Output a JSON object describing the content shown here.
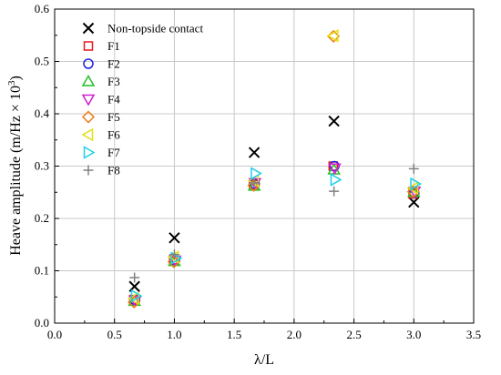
{
  "chart_data": {
    "type": "scatter",
    "xlabel": "λ/L",
    "ylabel_main": "Heave amplitude (m/Hz × 10",
    "ylabel_sup": "3",
    "ylabel_tail": ")",
    "xlim": [
      0.0,
      3.5
    ],
    "ylim": [
      0.0,
      0.6
    ],
    "xticks": [
      "0.0",
      "0.5",
      "1.0",
      "1.5",
      "2.0",
      "2.5",
      "3.0",
      "3.5"
    ],
    "yticks": [
      "0.0",
      "0.1",
      "0.2",
      "0.3",
      "0.4",
      "0.5",
      "0.6"
    ],
    "grid": true,
    "legend_position": "top-left",
    "x": [
      0.667,
      1.0,
      1.667,
      2.333,
      3.0
    ],
    "series": [
      {
        "name": "Non-topside contact",
        "marker": "x",
        "color": "#000000",
        "dx": 0.0,
        "values": [
          0.07,
          0.163,
          0.326,
          0.386,
          0.231
        ]
      },
      {
        "name": "F1",
        "marker": "square",
        "color": "#e8191f",
        "dx": -0.006,
        "values": [
          0.045,
          0.121,
          0.265,
          0.3,
          0.247
        ]
      },
      {
        "name": "F2",
        "marker": "circle",
        "color": "#1f1fe0",
        "dx": 0.004,
        "values": [
          0.044,
          0.12,
          0.266,
          0.3,
          0.249
        ]
      },
      {
        "name": "F3",
        "marker": "triangle-up",
        "color": "#22c022",
        "dx": 0.0,
        "values": [
          0.042,
          0.118,
          0.262,
          0.293,
          0.25
        ]
      },
      {
        "name": "F4",
        "marker": "triangle-down",
        "color": "#d21ed2",
        "dx": 0.006,
        "values": [
          0.043,
          0.12,
          0.268,
          0.296,
          0.252
        ]
      },
      {
        "name": "F5",
        "marker": "diamond",
        "color": "#f07b12",
        "dx": -0.004,
        "values": [
          0.04,
          0.117,
          0.263,
          0.548,
          0.251
        ]
      },
      {
        "name": "F6",
        "marker": "triangle-left",
        "color": "#e2e012",
        "dx": -0.002,
        "values": [
          0.047,
          0.126,
          0.272,
          0.549,
          0.258
        ]
      },
      {
        "name": "F7",
        "marker": "triangle-right",
        "color": "#1fd0e6",
        "dx": 0.01,
        "values": [
          0.052,
          0.124,
          0.286,
          0.274,
          0.266
        ]
      },
      {
        "name": "F8",
        "marker": "plus",
        "color": "#808080",
        "dx": 0.0,
        "values": [
          0.087,
          0.131,
          0.268,
          0.252,
          0.295
        ]
      }
    ]
  }
}
